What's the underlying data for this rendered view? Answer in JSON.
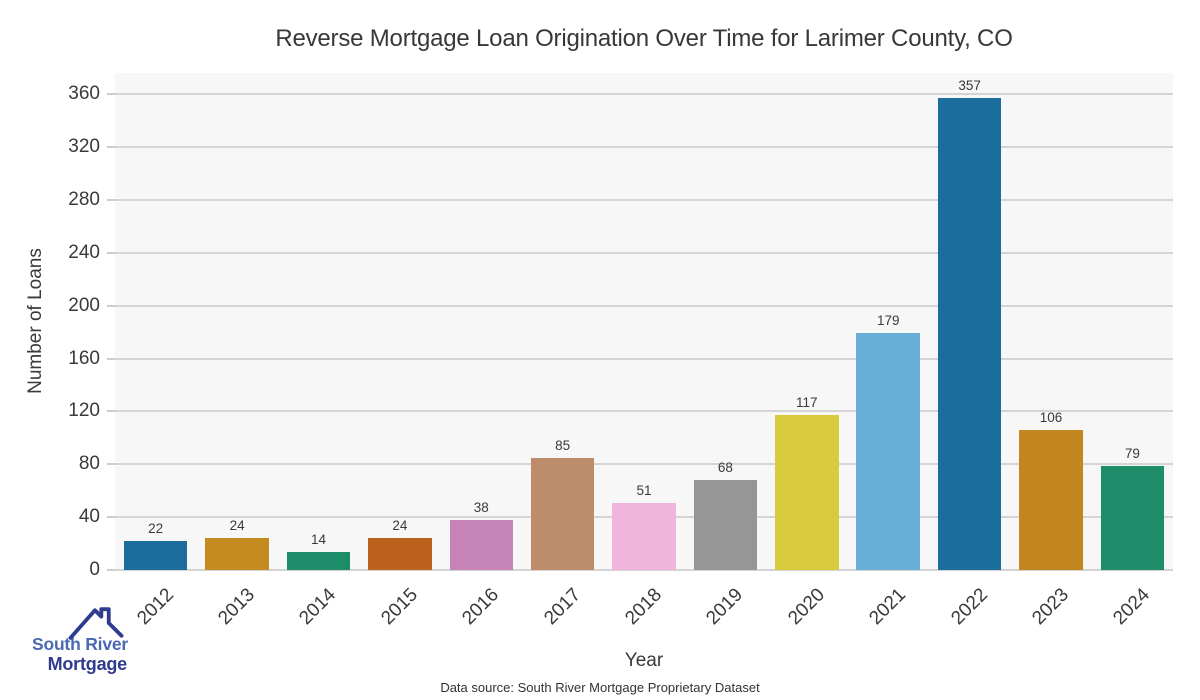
{
  "chart_data": {
    "type": "bar",
    "title": "Reverse Mortgage Loan Origination Over Time for Larimer County, CO",
    "xlabel": "Year",
    "ylabel": "Number of Loans",
    "categories": [
      "2012",
      "2013",
      "2014",
      "2015",
      "2016",
      "2017",
      "2018",
      "2019",
      "2020",
      "2021",
      "2022",
      "2023",
      "2024"
    ],
    "values": [
      22,
      24,
      14,
      24,
      38,
      85,
      51,
      68,
      117,
      179,
      357,
      106,
      79
    ],
    "bar_colors": [
      "#1b6d9e",
      "#c48b21",
      "#1d8c69",
      "#bb611e",
      "#c583b7",
      "#bd8d6b",
      "#f1b4dc",
      "#969696",
      "#d8cb3e",
      "#67aed6",
      "#1b6d9e",
      "#c4861f",
      "#1d8c69"
    ],
    "yticks": [
      0,
      40,
      80,
      120,
      160,
      200,
      240,
      280,
      320,
      360
    ],
    "ylim": [
      0,
      376
    ],
    "grid": true,
    "legend": "none",
    "value_labels_shown": true,
    "plot_background": "#f7f7f7",
    "grid_color": "#d4d4d4"
  },
  "logo": {
    "line1": "South River",
    "line2": "Mortgage",
    "line1_color": "#4a69b3",
    "line2_color": "#2f3b8e",
    "roof_color": "#2f3b8e",
    "icon": "house-roof-icon"
  },
  "footer": {
    "data_source": "Data source: South River Mortgage Proprietary Dataset"
  }
}
